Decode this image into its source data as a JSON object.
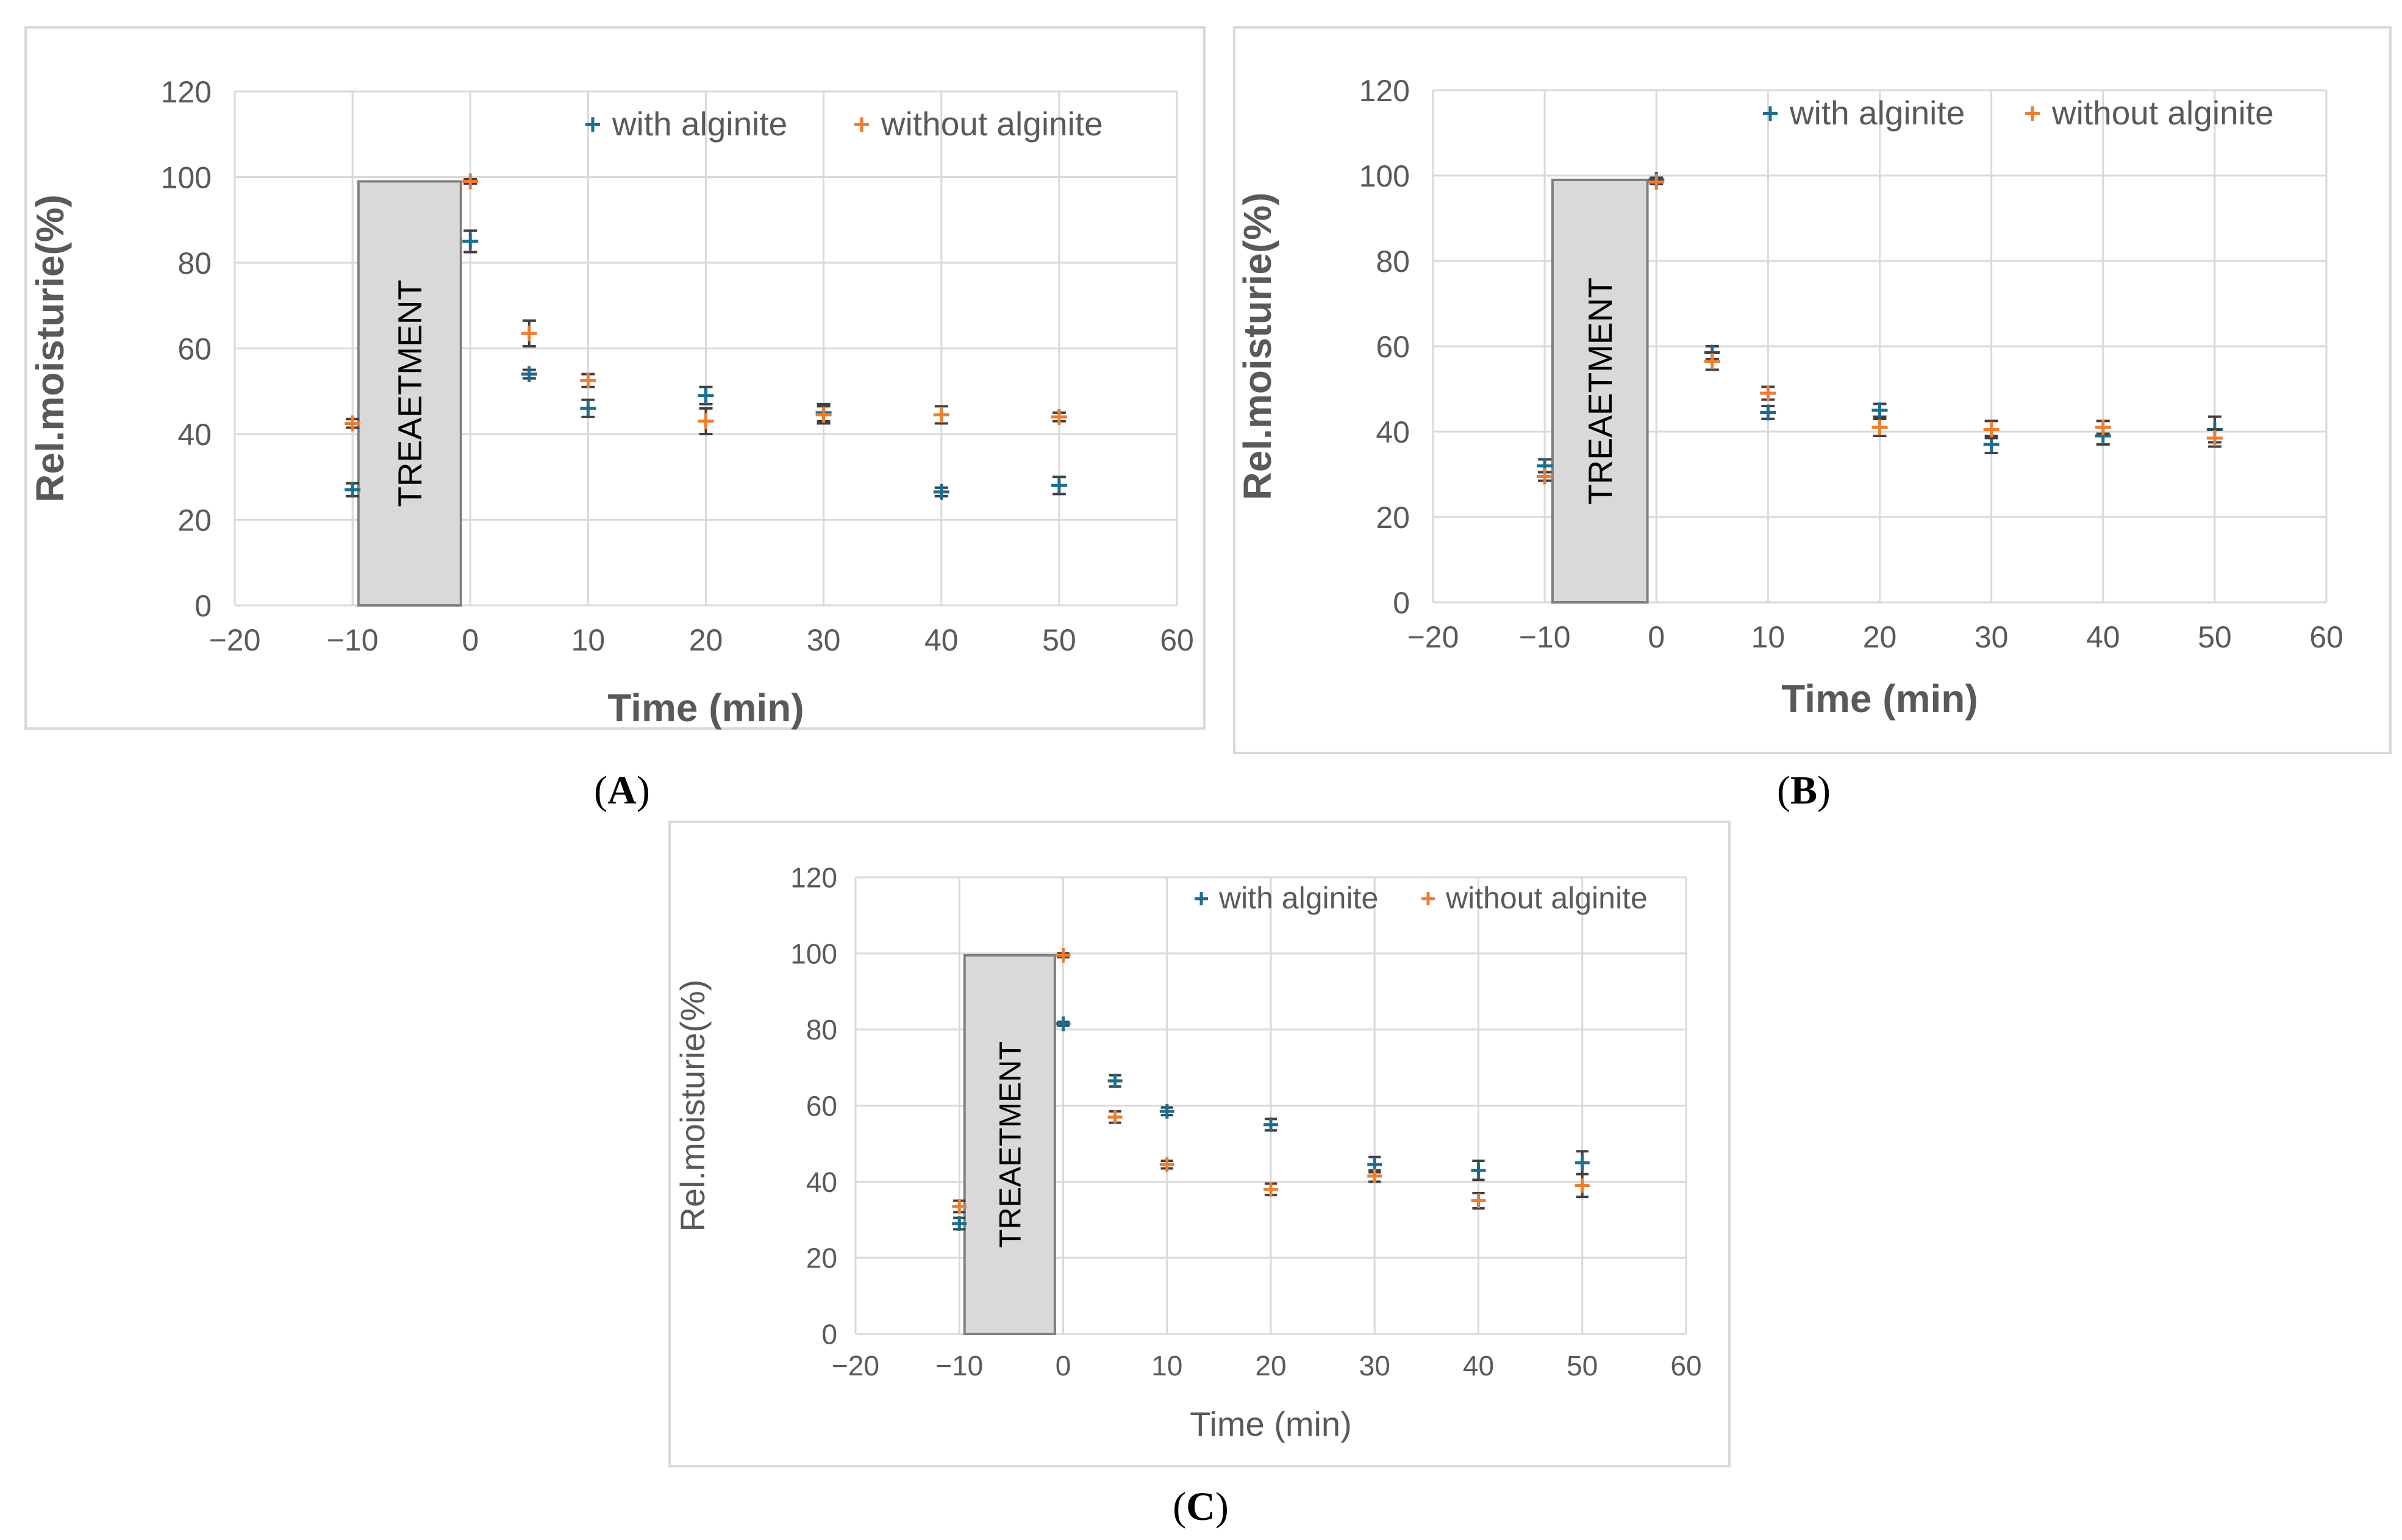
{
  "colors": {
    "with": "#1B6E8F",
    "without": "#ED7D31",
    "error": "#404040",
    "grid": "#D9D9D9",
    "box": "#D9D9D9"
  },
  "chart_data": [
    {
      "id": "A",
      "type": "scatter",
      "panel_label": "A",
      "xlabel": "Time (min)",
      "ylabel": "Rel.moisturie(%)",
      "xlim": [
        -20,
        60
      ],
      "ylim": [
        0,
        120
      ],
      "xticks": [
        -20,
        -10,
        0,
        10,
        20,
        30,
        40,
        50,
        60
      ],
      "yticks": [
        0,
        20,
        40,
        60,
        80,
        100,
        120
      ],
      "grid": true,
      "legend": "top-right",
      "annotation": {
        "text": "TREAETMENT",
        "x_range": [
          -9.5,
          -0.8
        ],
        "y_range": [
          0,
          99
        ]
      },
      "x": [
        -10,
        0,
        5,
        10,
        20,
        30,
        40,
        50
      ],
      "series": [
        {
          "name": "with alginite",
          "values": [
            27,
            85,
            54,
            46,
            49,
            45,
            26.5,
            28
          ],
          "errors": [
            1.5,
            2.5,
            1,
            2,
            2,
            2,
            1,
            2
          ]
        },
        {
          "name": "without alginite",
          "values": [
            42.5,
            99,
            63.5,
            52.5,
            43,
            44.5,
            44.5,
            44
          ],
          "errors": [
            1,
            0.5,
            3,
            1.5,
            3,
            2,
            2,
            1
          ]
        }
      ]
    },
    {
      "id": "B",
      "type": "scatter",
      "panel_label": "B",
      "xlabel": "Time (min)",
      "ylabel": "Rel.moisturie(%)",
      "xlim": [
        -20,
        60
      ],
      "ylim": [
        0,
        120
      ],
      "xticks": [
        -20,
        -10,
        0,
        10,
        20,
        30,
        40,
        50,
        60
      ],
      "yticks": [
        0,
        20,
        40,
        60,
        80,
        100,
        120
      ],
      "grid": true,
      "legend": "top-right",
      "annotation": {
        "text": "TREAETMENT",
        "x_range": [
          -9.3,
          -0.8
        ],
        "y_range": [
          0,
          99
        ]
      },
      "x": [
        -10,
        0,
        5,
        10,
        20,
        30,
        40,
        50
      ],
      "series": [
        {
          "name": "with alginite",
          "values": [
            32,
            99,
            58.5,
            44.5,
            45,
            37,
            39,
            40.5
          ],
          "errors": [
            1.5,
            0.5,
            1.5,
            1.5,
            1.5,
            2,
            2,
            3
          ]
        },
        {
          "name": "without alginite",
          "values": [
            29.5,
            98.5,
            56.5,
            49,
            41,
            40.5,
            41,
            38.5
          ],
          "errors": [
            1,
            0.5,
            2,
            1.5,
            2,
            2,
            1.5,
            2
          ]
        }
      ]
    },
    {
      "id": "C",
      "type": "scatter",
      "panel_label": "C",
      "xlabel": "Time (min)",
      "ylabel": "Rel.moisturie(%)",
      "xlim": [
        -20,
        60
      ],
      "ylim": [
        0,
        120
      ],
      "xticks": [
        -20,
        -10,
        0,
        10,
        20,
        30,
        40,
        50,
        60
      ],
      "yticks": [
        0,
        20,
        40,
        60,
        80,
        100,
        120
      ],
      "grid": true,
      "legend": "top-right",
      "annotation": {
        "text": "TREAETMENT",
        "x_range": [
          -9.5,
          -0.8
        ],
        "y_range": [
          0,
          99.5
        ]
      },
      "x": [
        -10,
        0,
        5,
        10,
        20,
        30,
        40,
        50
      ],
      "series": [
        {
          "name": "with alginite",
          "values": [
            29,
            81.5,
            66.5,
            58.5,
            55,
            44.5,
            43,
            45
          ],
          "errors": [
            1.5,
            0.5,
            1.5,
            1,
            1.5,
            2,
            2.5,
            3
          ]
        },
        {
          "name": "without alginite",
          "values": [
            33.5,
            99.5,
            57,
            44.5,
            38,
            41.5,
            35,
            39
          ],
          "errors": [
            1.5,
            0.5,
            1.5,
            1,
            1.5,
            1.5,
            2,
            3
          ]
        }
      ]
    }
  ]
}
